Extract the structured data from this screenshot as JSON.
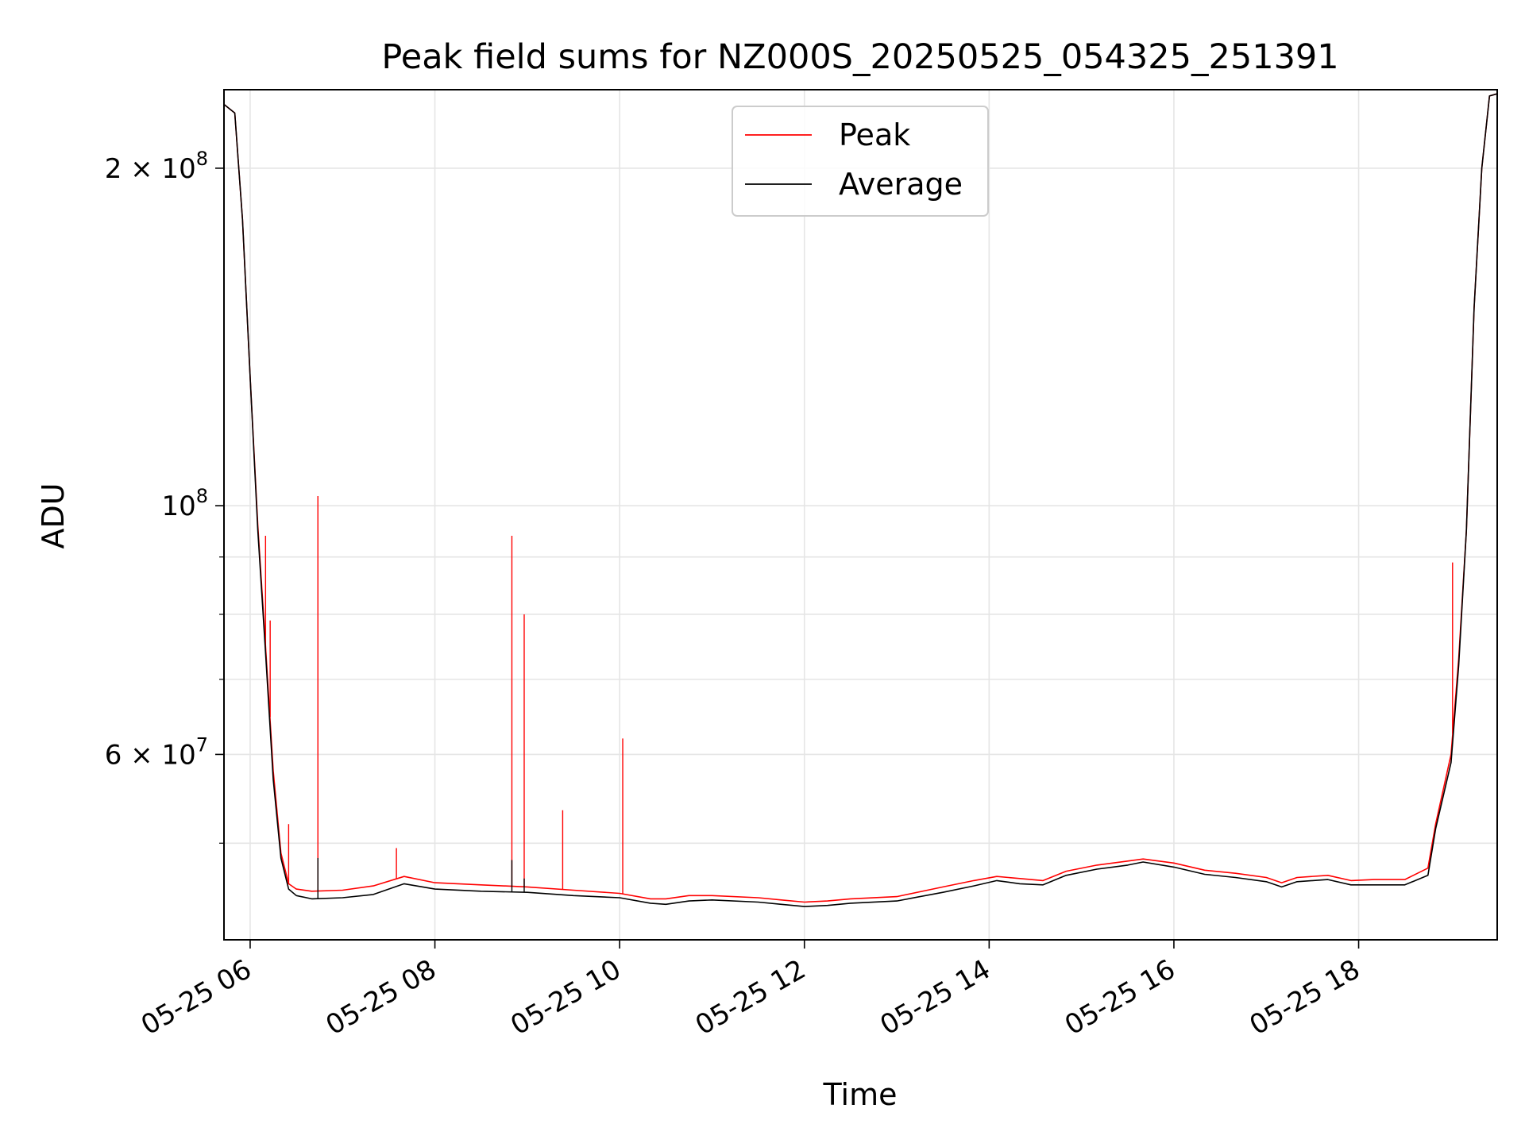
{
  "chart_data": {
    "type": "line",
    "title": "Peak field sums for NZ000S_20250525_054325_251391",
    "xlabel": "Time",
    "ylabel": "ADU",
    "yscale": "log",
    "xlim": [
      "2025-05-25T05:43",
      "2025-05-25T19:30"
    ],
    "ylim": [
      41000000,
      235000000
    ],
    "grid": true,
    "legend_position": "upper-center",
    "x_ticks": [
      {
        "t": "2025-05-25T06:00",
        "label": "05-25 06"
      },
      {
        "t": "2025-05-25T08:00",
        "label": "05-25 08"
      },
      {
        "t": "2025-05-25T10:00",
        "label": "05-25 10"
      },
      {
        "t": "2025-05-25T12:00",
        "label": "05-25 12"
      },
      {
        "t": "2025-05-25T14:00",
        "label": "05-25 14"
      },
      {
        "t": "2025-05-25T16:00",
        "label": "05-25 16"
      },
      {
        "t": "2025-05-25T18:00",
        "label": "05-25 18"
      }
    ],
    "y_major_ticks": [
      {
        "v": 60000000,
        "mant": "6",
        "exp": "7"
      },
      {
        "v": 100000000,
        "mant": "",
        "exp": "8"
      },
      {
        "v": 200000000,
        "mant": "2",
        "exp": "8"
      }
    ],
    "y_minor_ticks": [
      50000000,
      70000000,
      80000000,
      90000000
    ],
    "series": [
      {
        "name": "Peak",
        "color": "#ff0000",
        "x": [
          "2025-05-25T05:43",
          "2025-05-25T05:50",
          "2025-05-25T05:55",
          "2025-05-25T06:00",
          "2025-05-25T06:05",
          "2025-05-25T06:10",
          "2025-05-25T06:15",
          "2025-05-25T06:20",
          "2025-05-25T06:25",
          "2025-05-25T06:30",
          "2025-05-25T06:40",
          "2025-05-25T07:00",
          "2025-05-25T07:20",
          "2025-05-25T07:40",
          "2025-05-25T08:00",
          "2025-05-25T08:30",
          "2025-05-25T09:00",
          "2025-05-25T09:30",
          "2025-05-25T10:00",
          "2025-05-25T10:20",
          "2025-05-25T10:30",
          "2025-05-25T10:45",
          "2025-05-25T11:00",
          "2025-05-25T11:30",
          "2025-05-25T11:45",
          "2025-05-25T12:00",
          "2025-05-25T12:15",
          "2025-05-25T12:30",
          "2025-05-25T13:00",
          "2025-05-25T13:30",
          "2025-05-25T13:50",
          "2025-05-25T14:05",
          "2025-05-25T14:20",
          "2025-05-25T14:35",
          "2025-05-25T14:50",
          "2025-05-25T15:10",
          "2025-05-25T15:30",
          "2025-05-25T15:40",
          "2025-05-25T16:00",
          "2025-05-25T16:20",
          "2025-05-25T16:40",
          "2025-05-25T17:00",
          "2025-05-25T17:10",
          "2025-05-25T17:20",
          "2025-05-25T17:40",
          "2025-05-25T17:55",
          "2025-05-25T18:10",
          "2025-05-25T18:30",
          "2025-05-25T18:45",
          "2025-05-25T18:50",
          "2025-05-25T19:00",
          "2025-05-25T19:05",
          "2025-05-25T19:10",
          "2025-05-25T19:15",
          "2025-05-25T19:20",
          "2025-05-25T19:25",
          "2025-05-25T19:30"
        ],
        "y": [
          228000000,
          224000000,
          180000000,
          130000000,
          96000000,
          75000000,
          58000000,
          49000000,
          46000000,
          45500000,
          45300000,
          45400000,
          45800000,
          46700000,
          46100000,
          45900000,
          45700000,
          45400000,
          45100000,
          44600000,
          44600000,
          44900000,
          44900000,
          44700000,
          44500000,
          44300000,
          44400000,
          44600000,
          44800000,
          45700000,
          46300000,
          46700000,
          46500000,
          46300000,
          47200000,
          47800000,
          48200000,
          48400000,
          48000000,
          47300000,
          47000000,
          46600000,
          46100000,
          46600000,
          46800000,
          46300000,
          46400000,
          46400000,
          47500000,
          52000000,
          60000000,
          73000000,
          95000000,
          150000000,
          200000000,
          232000000,
          233000000
        ],
        "spikes": [
          {
            "x": "2025-05-25T06:10",
            "y": 94000000
          },
          {
            "x": "2025-05-25T06:13",
            "y": 79000000
          },
          {
            "x": "2025-05-25T06:25",
            "y": 52000000
          },
          {
            "x": "2025-05-25T06:44",
            "y": 102000000
          },
          {
            "x": "2025-05-25T07:35",
            "y": 49500000
          },
          {
            "x": "2025-05-25T08:50",
            "y": 94000000
          },
          {
            "x": "2025-05-25T08:58",
            "y": 80000000
          },
          {
            "x": "2025-05-25T09:23",
            "y": 53500000
          },
          {
            "x": "2025-05-25T10:02",
            "y": 62000000
          },
          {
            "x": "2025-05-25T19:01",
            "y": 89000000
          }
        ]
      },
      {
        "name": "Average",
        "color": "#000000",
        "x": [
          "2025-05-25T05:43",
          "2025-05-25T05:50",
          "2025-05-25T05:55",
          "2025-05-25T06:00",
          "2025-05-25T06:05",
          "2025-05-25T06:10",
          "2025-05-25T06:15",
          "2025-05-25T06:20",
          "2025-05-25T06:25",
          "2025-05-25T06:30",
          "2025-05-25T06:40",
          "2025-05-25T07:00",
          "2025-05-25T07:20",
          "2025-05-25T07:40",
          "2025-05-25T08:00",
          "2025-05-25T08:30",
          "2025-05-25T09:00",
          "2025-05-25T09:30",
          "2025-05-25T10:00",
          "2025-05-25T10:20",
          "2025-05-25T10:30",
          "2025-05-25T10:45",
          "2025-05-25T11:00",
          "2025-05-25T11:30",
          "2025-05-25T11:45",
          "2025-05-25T12:00",
          "2025-05-25T12:15",
          "2025-05-25T12:30",
          "2025-05-25T13:00",
          "2025-05-25T13:30",
          "2025-05-25T13:50",
          "2025-05-25T14:05",
          "2025-05-25T14:20",
          "2025-05-25T14:35",
          "2025-05-25T14:50",
          "2025-05-25T15:10",
          "2025-05-25T15:30",
          "2025-05-25T15:40",
          "2025-05-25T16:00",
          "2025-05-25T16:20",
          "2025-05-25T16:40",
          "2025-05-25T17:00",
          "2025-05-25T17:10",
          "2025-05-25T17:20",
          "2025-05-25T17:40",
          "2025-05-25T17:55",
          "2025-05-25T18:10",
          "2025-05-25T18:30",
          "2025-05-25T18:45",
          "2025-05-25T18:50",
          "2025-05-25T19:00",
          "2025-05-25T19:05",
          "2025-05-25T19:10",
          "2025-05-25T19:15",
          "2025-05-25T19:20",
          "2025-05-25T19:25",
          "2025-05-25T19:30"
        ],
        "y": [
          228000000,
          224000000,
          180000000,
          130000000,
          95000000,
          74000000,
          57000000,
          48500000,
          45500000,
          44900000,
          44600000,
          44700000,
          45000000,
          46000000,
          45500000,
          45300000,
          45200000,
          44900000,
          44700000,
          44200000,
          44100000,
          44400000,
          44500000,
          44300000,
          44100000,
          43900000,
          44000000,
          44200000,
          44400000,
          45200000,
          45800000,
          46300000,
          46000000,
          45900000,
          46800000,
          47400000,
          47800000,
          48100000,
          47600000,
          46900000,
          46600000,
          46200000,
          45700000,
          46200000,
          46400000,
          45900000,
          45900000,
          45900000,
          46800000,
          51500000,
          59000000,
          72000000,
          95000000,
          150000000,
          200000000,
          232000000,
          233000000
        ],
        "spikes": [
          {
            "x": "2025-05-25T06:44",
            "y": 48500000
          },
          {
            "x": "2025-05-25T08:50",
            "y": 48300000
          },
          {
            "x": "2025-05-25T08:58",
            "y": 46500000
          }
        ]
      }
    ]
  }
}
